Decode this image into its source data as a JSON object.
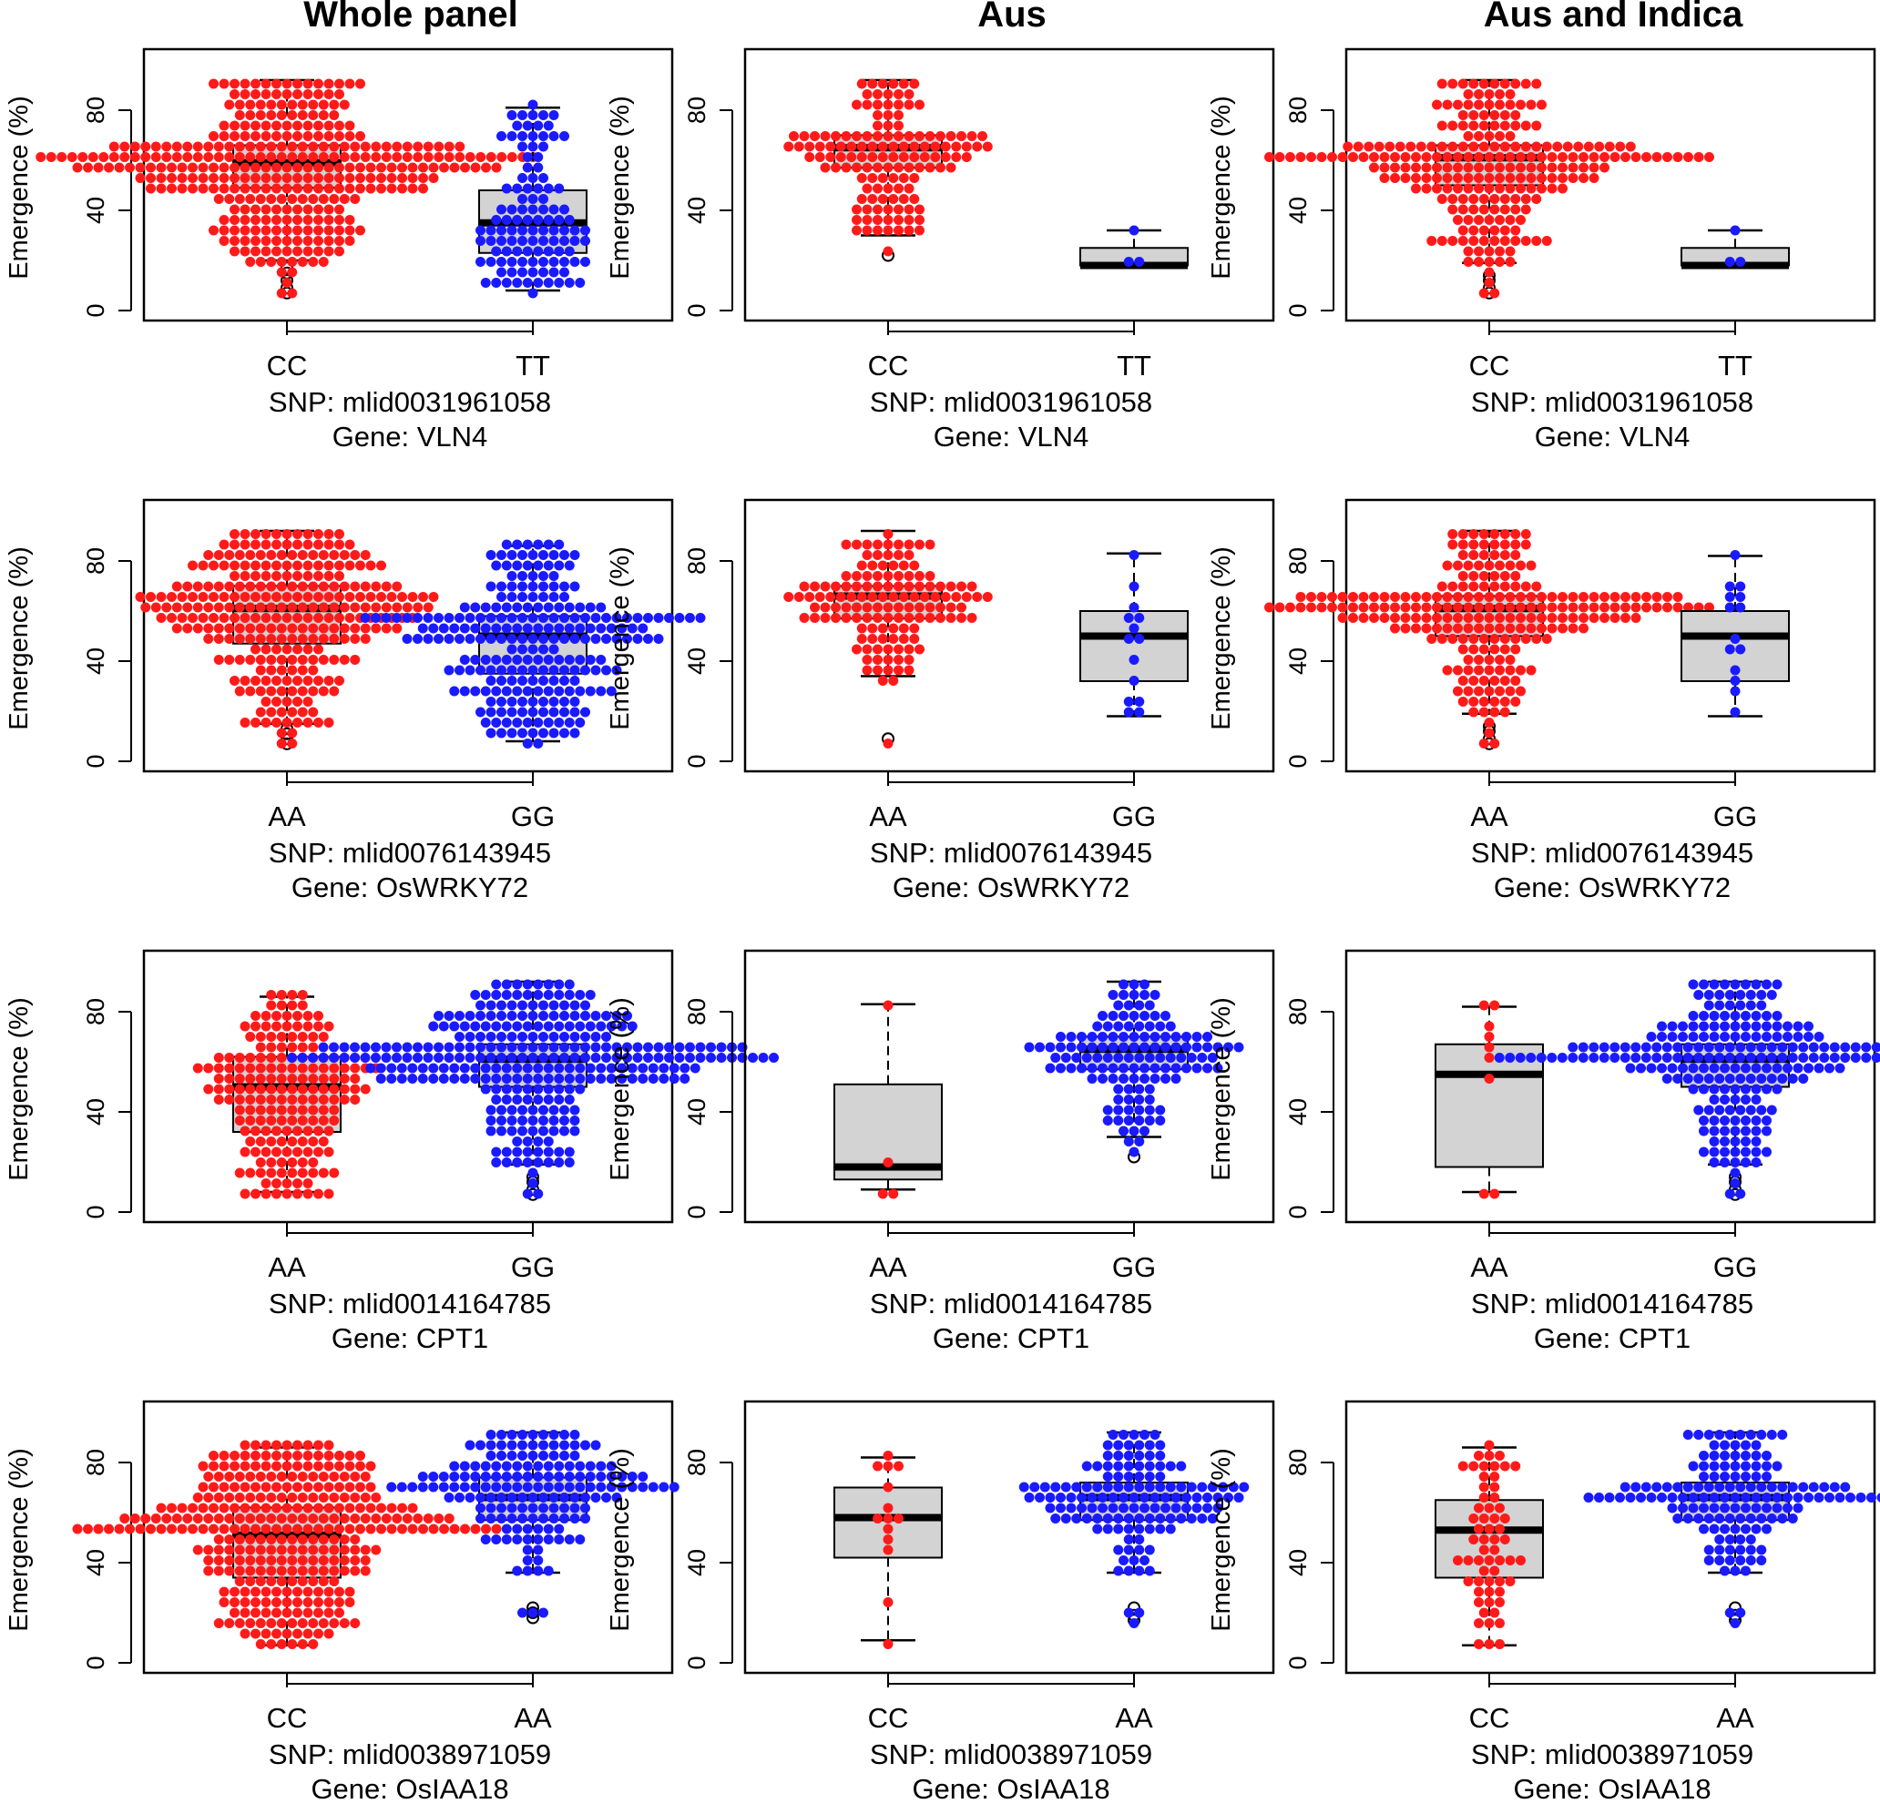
{
  "figure": {
    "column_titles": [
      "Whole panel",
      "Aus",
      "Aus and Indica"
    ],
    "ylabel": "Emergence (%)",
    "y_ticks": [
      0,
      40,
      80
    ],
    "ylim": [
      0,
      100
    ],
    "colors": {
      "genotype_1": "#ff1a1a",
      "genotype_2": "#1a1aff",
      "box_fill": "#d3d3d3",
      "axis": "#000000"
    }
  },
  "chart_data": [
    {
      "type": "box-beeswarm",
      "row": 0,
      "col": 0,
      "title": "Whole panel",
      "ylabel": "Emergence (%)",
      "ylim": [
        0,
        100
      ],
      "categories": [
        "CC",
        "TT"
      ],
      "snp_label": "SNP: mlid0031961058",
      "gene_label": "Gene: VLN4",
      "boxes": [
        {
          "min": 20,
          "q1": 49,
          "median": 59,
          "q3": 66,
          "max": 92,
          "outliers": [
            7,
            9,
            12,
            15,
            17
          ]
        },
        {
          "min": 8,
          "q1": 23,
          "median": 35,
          "q3": 48,
          "max": 81,
          "outliers": []
        }
      ],
      "swarm_counts": [
        340,
        110
      ]
    },
    {
      "type": "box-beeswarm",
      "row": 0,
      "col": 1,
      "title": "Aus",
      "ylabel": "Emergence (%)",
      "ylim": [
        0,
        100
      ],
      "categories": [
        "CC",
        "TT"
      ],
      "snp_label": "SNP: mlid0031961058",
      "gene_label": "Gene: VLN4",
      "boxes": [
        {
          "min": 30,
          "q1": 57,
          "median": 65,
          "q3": 70,
          "max": 92,
          "outliers": [
            22
          ]
        },
        {
          "min": 18,
          "q1": 18,
          "median": 18,
          "q3": 25,
          "max": 32,
          "outliers": []
        }
      ],
      "swarm_counts": [
        130,
        3
      ]
    },
    {
      "type": "box-beeswarm",
      "row": 0,
      "col": 2,
      "title": "Aus and Indica",
      "ylabel": "Emergence (%)",
      "ylim": [
        0,
        100
      ],
      "categories": [
        "CC",
        "TT"
      ],
      "snp_label": "SNP: mlid0031961058",
      "gene_label": "Gene: VLN4",
      "boxes": [
        {
          "min": 19,
          "q1": 50,
          "median": 61,
          "q3": 66,
          "max": 92,
          "outliers": [
            7,
            9,
            12,
            14
          ]
        },
        {
          "min": 18,
          "q1": 18,
          "median": 18,
          "q3": 25,
          "max": 32,
          "outliers": []
        }
      ],
      "swarm_counts": [
        230,
        3
      ]
    },
    {
      "type": "box-beeswarm",
      "row": 1,
      "col": 0,
      "title": "Whole panel",
      "ylabel": "Emergence (%)",
      "ylim": [
        0,
        100
      ],
      "categories": [
        "AA",
        "GG"
      ],
      "snp_label": "SNP: mlid0076143945",
      "gene_label": "Gene: OsWRKY72",
      "boxes": [
        {
          "min": 15,
          "q1": 47,
          "median": 61,
          "q3": 70,
          "max": 92,
          "outliers": [
            7,
            9,
            11,
            13
          ]
        },
        {
          "min": 8,
          "q1": 35,
          "median": 50,
          "q3": 58,
          "max": 86,
          "outliers": []
        }
      ],
      "swarm_counts": [
        280,
        240
      ]
    },
    {
      "type": "box-beeswarm",
      "row": 1,
      "col": 1,
      "title": "Aus",
      "ylabel": "Emergence (%)",
      "ylim": [
        0,
        100
      ],
      "categories": [
        "AA",
        "GG"
      ],
      "snp_label": "SNP: mlid0076143945",
      "gene_label": "Gene: OsWRKY72",
      "boxes": [
        {
          "min": 34,
          "q1": 57,
          "median": 66,
          "q3": 70,
          "max": 92,
          "outliers": [
            9
          ]
        },
        {
          "min": 18,
          "q1": 32,
          "median": 50,
          "q3": 60,
          "max": 83,
          "outliers": []
        }
      ],
      "swarm_counts": [
        130,
        14
      ]
    },
    {
      "type": "box-beeswarm",
      "row": 1,
      "col": 2,
      "title": "Aus and Indica",
      "ylabel": "Emergence (%)",
      "ylim": [
        0,
        100
      ],
      "categories": [
        "AA",
        "GG"
      ],
      "snp_label": "SNP: mlid0076143945",
      "gene_label": "Gene: OsWRKY72",
      "boxes": [
        {
          "min": 19,
          "q1": 50,
          "median": 61,
          "q3": 66,
          "max": 92,
          "outliers": [
            7,
            9,
            12,
            14
          ]
        },
        {
          "min": 18,
          "q1": 32,
          "median": 50,
          "q3": 60,
          "max": 82,
          "outliers": []
        }
      ],
      "swarm_counts": [
        230,
        14
      ]
    },
    {
      "type": "box-beeswarm",
      "row": 2,
      "col": 0,
      "title": "Whole panel",
      "ylabel": "Emergence (%)",
      "ylim": [
        0,
        100
      ],
      "categories": [
        "AA",
        "GG"
      ],
      "snp_label": "SNP: mlid0014164785",
      "gene_label": "Gene: CPT1",
      "boxes": [
        {
          "min": 8,
          "q1": 32,
          "median": 50,
          "q3": 62,
          "max": 86,
          "outliers": []
        },
        {
          "min": 19,
          "q1": 50,
          "median": 61,
          "q3": 67,
          "max": 92,
          "outliers": [
            7,
            9,
            12,
            14
          ]
        }
      ],
      "swarm_counts": [
        190,
        300
      ]
    },
    {
      "type": "box-beeswarm",
      "row": 2,
      "col": 1,
      "title": "Aus",
      "ylabel": "Emergence (%)",
      "ylim": [
        0,
        100
      ],
      "categories": [
        "AA",
        "GG"
      ],
      "snp_label": "SNP: mlid0014164785",
      "gene_label": "Gene: CPT1",
      "boxes": [
        {
          "min": 9,
          "q1": 13,
          "median": 18,
          "q3": 51,
          "max": 83,
          "outliers": []
        },
        {
          "min": 30,
          "q1": 57,
          "median": 65,
          "q3": 70,
          "max": 92,
          "outliers": [
            22
          ]
        }
      ],
      "swarm_counts": [
        4,
        130
      ]
    },
    {
      "type": "box-beeswarm",
      "row": 2,
      "col": 2,
      "title": "Aus and Indica",
      "ylabel": "Emergence (%)",
      "ylim": [
        0,
        100
      ],
      "categories": [
        "AA",
        "GG"
      ],
      "snp_label": "SNP: mlid0014164785",
      "gene_label": "Gene: CPT1",
      "boxes": [
        {
          "min": 8,
          "q1": 18,
          "median": 55,
          "q3": 67,
          "max": 82,
          "outliers": []
        },
        {
          "min": 19,
          "q1": 50,
          "median": 61,
          "q3": 67,
          "max": 92,
          "outliers": [
            7,
            9,
            12,
            14
          ]
        }
      ],
      "swarm_counts": [
        9,
        230
      ]
    },
    {
      "type": "box-beeswarm",
      "row": 3,
      "col": 0,
      "title": "Whole panel",
      "ylabel": "Emergence (%)",
      "ylim": [
        0,
        100
      ],
      "categories": [
        "CC",
        "AA"
      ],
      "snp_label": "SNP: mlid0038971059",
      "gene_label": "Gene: OsIAA18",
      "boxes": [
        {
          "min": 7,
          "q1": 34,
          "median": 51,
          "q3": 62,
          "max": 86,
          "outliers": []
        },
        {
          "min": 36,
          "q1": 57,
          "median": 66,
          "q3": 74,
          "max": 92,
          "outliers": [
            18,
            20,
            22
          ]
        }
      ],
      "swarm_counts": [
        330,
        160
      ]
    },
    {
      "type": "box-beeswarm",
      "row": 3,
      "col": 1,
      "title": "Aus",
      "ylabel": "Emergence (%)",
      "ylim": [
        0,
        100
      ],
      "categories": [
        "CC",
        "AA"
      ],
      "snp_label": "SNP: mlid0038971059",
      "gene_label": "Gene: OsIAA18",
      "boxes": [
        {
          "min": 9,
          "q1": 42,
          "median": 58,
          "q3": 70,
          "max": 82,
          "outliers": []
        },
        {
          "min": 36,
          "q1": 57,
          "median": 66,
          "q3": 72,
          "max": 92,
          "outliers": [
            17,
            19,
            22
          ]
        }
      ],
      "swarm_counts": [
        14,
        130
      ]
    },
    {
      "type": "box-beeswarm",
      "row": 3,
      "col": 2,
      "title": "Aus and Indica",
      "ylabel": "Emergence (%)",
      "ylim": [
        0,
        100
      ],
      "categories": [
        "CC",
        "AA"
      ],
      "snp_label": "SNP: mlid0038971059",
      "gene_label": "Gene: OsIAA18",
      "boxes": [
        {
          "min": 7,
          "q1": 34,
          "median": 53,
          "q3": 65,
          "max": 86,
          "outliers": []
        },
        {
          "min": 36,
          "q1": 57,
          "median": 66,
          "q3": 72,
          "max": 92,
          "outliers": [
            17,
            19,
            22
          ]
        }
      ],
      "swarm_counts": [
        60,
        140
      ]
    }
  ]
}
